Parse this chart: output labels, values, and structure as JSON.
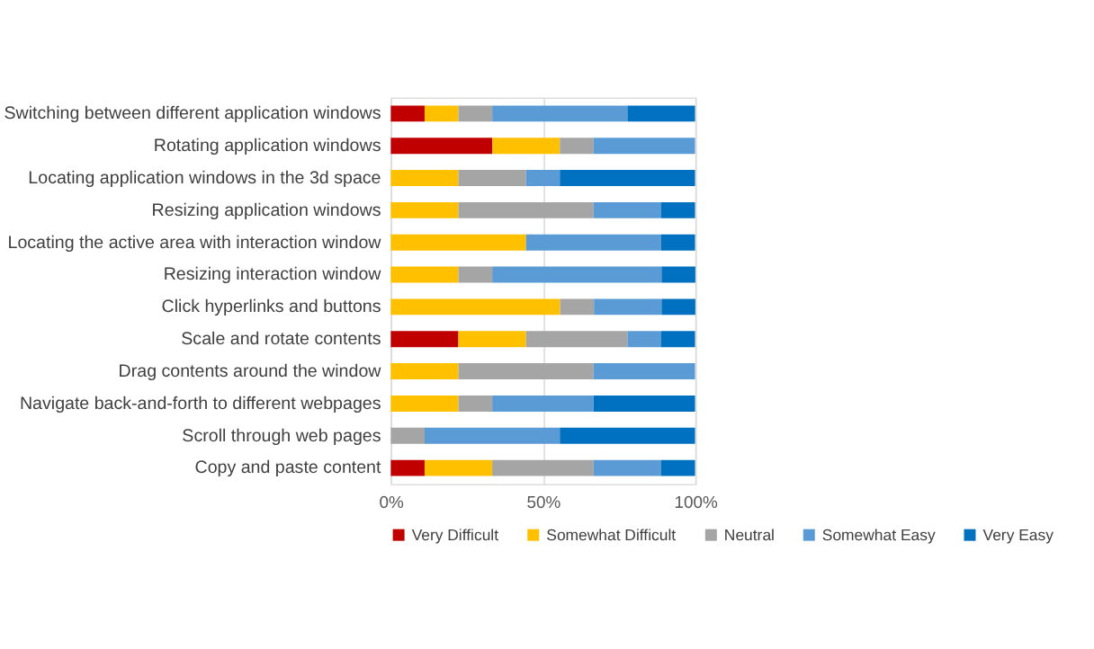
{
  "chart_data": {
    "type": "bar",
    "orientation": "horizontal",
    "stacked": true,
    "categories": [
      "Switching between different application windows",
      "Rotating application windows",
      "Locating application windows in the 3d space",
      "Resizing application windows",
      "Locating the active area with interaction window",
      "Resizing interaction window",
      "Click hyperlinks and buttons",
      "Scale and rotate contents",
      "Drag contents around the window",
      "Navigate back-and-forth to different webpages",
      "Scroll through web pages",
      "Copy and paste content"
    ],
    "series": [
      {
        "name": "Very Difficult",
        "color": "#c00000",
        "values": [
          11.1,
          33.3,
          0,
          0,
          0,
          0,
          0,
          22.2,
          0,
          0,
          0,
          11.1
        ]
      },
      {
        "name": "Somewhat Difficult",
        "color": "#ffc000",
        "values": [
          11.1,
          22.2,
          22.2,
          22.2,
          44.4,
          22.2,
          55.6,
          22.2,
          22.2,
          22.2,
          0,
          22.2
        ]
      },
      {
        "name": "Neutral",
        "color": "#a5a5a5",
        "values": [
          11.1,
          11.1,
          22.2,
          44.4,
          0,
          11.1,
          11.1,
          33.3,
          44.4,
          11.1,
          11.1,
          33.3
        ]
      },
      {
        "name": "Somewhat Easy",
        "color": "#5b9bd5",
        "values": [
          44.4,
          33.3,
          11.1,
          22.2,
          44.4,
          55.6,
          22.2,
          11.1,
          33.3,
          33.3,
          44.4,
          22.2
        ]
      },
      {
        "name": "Very Easy",
        "color": "#0070c0",
        "values": [
          22.2,
          0,
          44.4,
          11.1,
          11.1,
          11.1,
          11.1,
          11.1,
          0,
          33.3,
          44.4,
          11.1
        ]
      }
    ],
    "xlim": [
      0,
      100
    ],
    "xticks": [
      {
        "value": 0,
        "label": "0%"
      },
      {
        "value": 50,
        "label": "50%"
      },
      {
        "value": 100,
        "label": "100%"
      }
    ],
    "grid": "x",
    "legend": "bottom"
  }
}
